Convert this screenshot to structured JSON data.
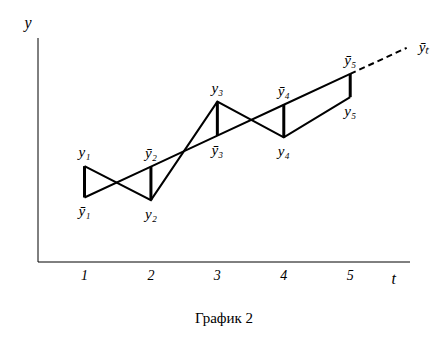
{
  "chart_data": {
    "type": "line",
    "title": "График 2",
    "x_label": "t",
    "y_label": "y",
    "xlim": [
      0.3,
      5.9
    ],
    "xticks": [
      1,
      2,
      3,
      4,
      5
    ],
    "ylim": [
      0,
      25
    ],
    "yticks": [],
    "tick_labels": "x",
    "grid": false,
    "series": [
      {
        "x": [
          1,
          2,
          3,
          4,
          5
        ],
        "values": [
          10.7,
          6.9,
          17.9,
          13.9,
          18.4
        ],
        "labels": [
          "y₁",
          "y₂",
          "y₃",
          "y₄",
          "y₅"
        ],
        "color": "#000000",
        "line_style": "solid"
      },
      {
        "x": [
          1,
          2,
          3,
          4,
          5
        ],
        "values": [
          7.2,
          10.65,
          14.1,
          17.55,
          21.0
        ],
        "labels": [
          "ȳ₁",
          "ȳ₂",
          "ȳ₃",
          "ȳ₄",
          "ȳ₅"
        ],
        "color": "#000000",
        "line_style": "solid"
      },
      {
        "x": [
          5,
          5.85
        ],
        "values": [
          21.0,
          23.9
        ],
        "labels": [
          null,
          "ȳₜ"
        ],
        "color": "#000000",
        "line_style": "dashed"
      }
    ]
  }
}
